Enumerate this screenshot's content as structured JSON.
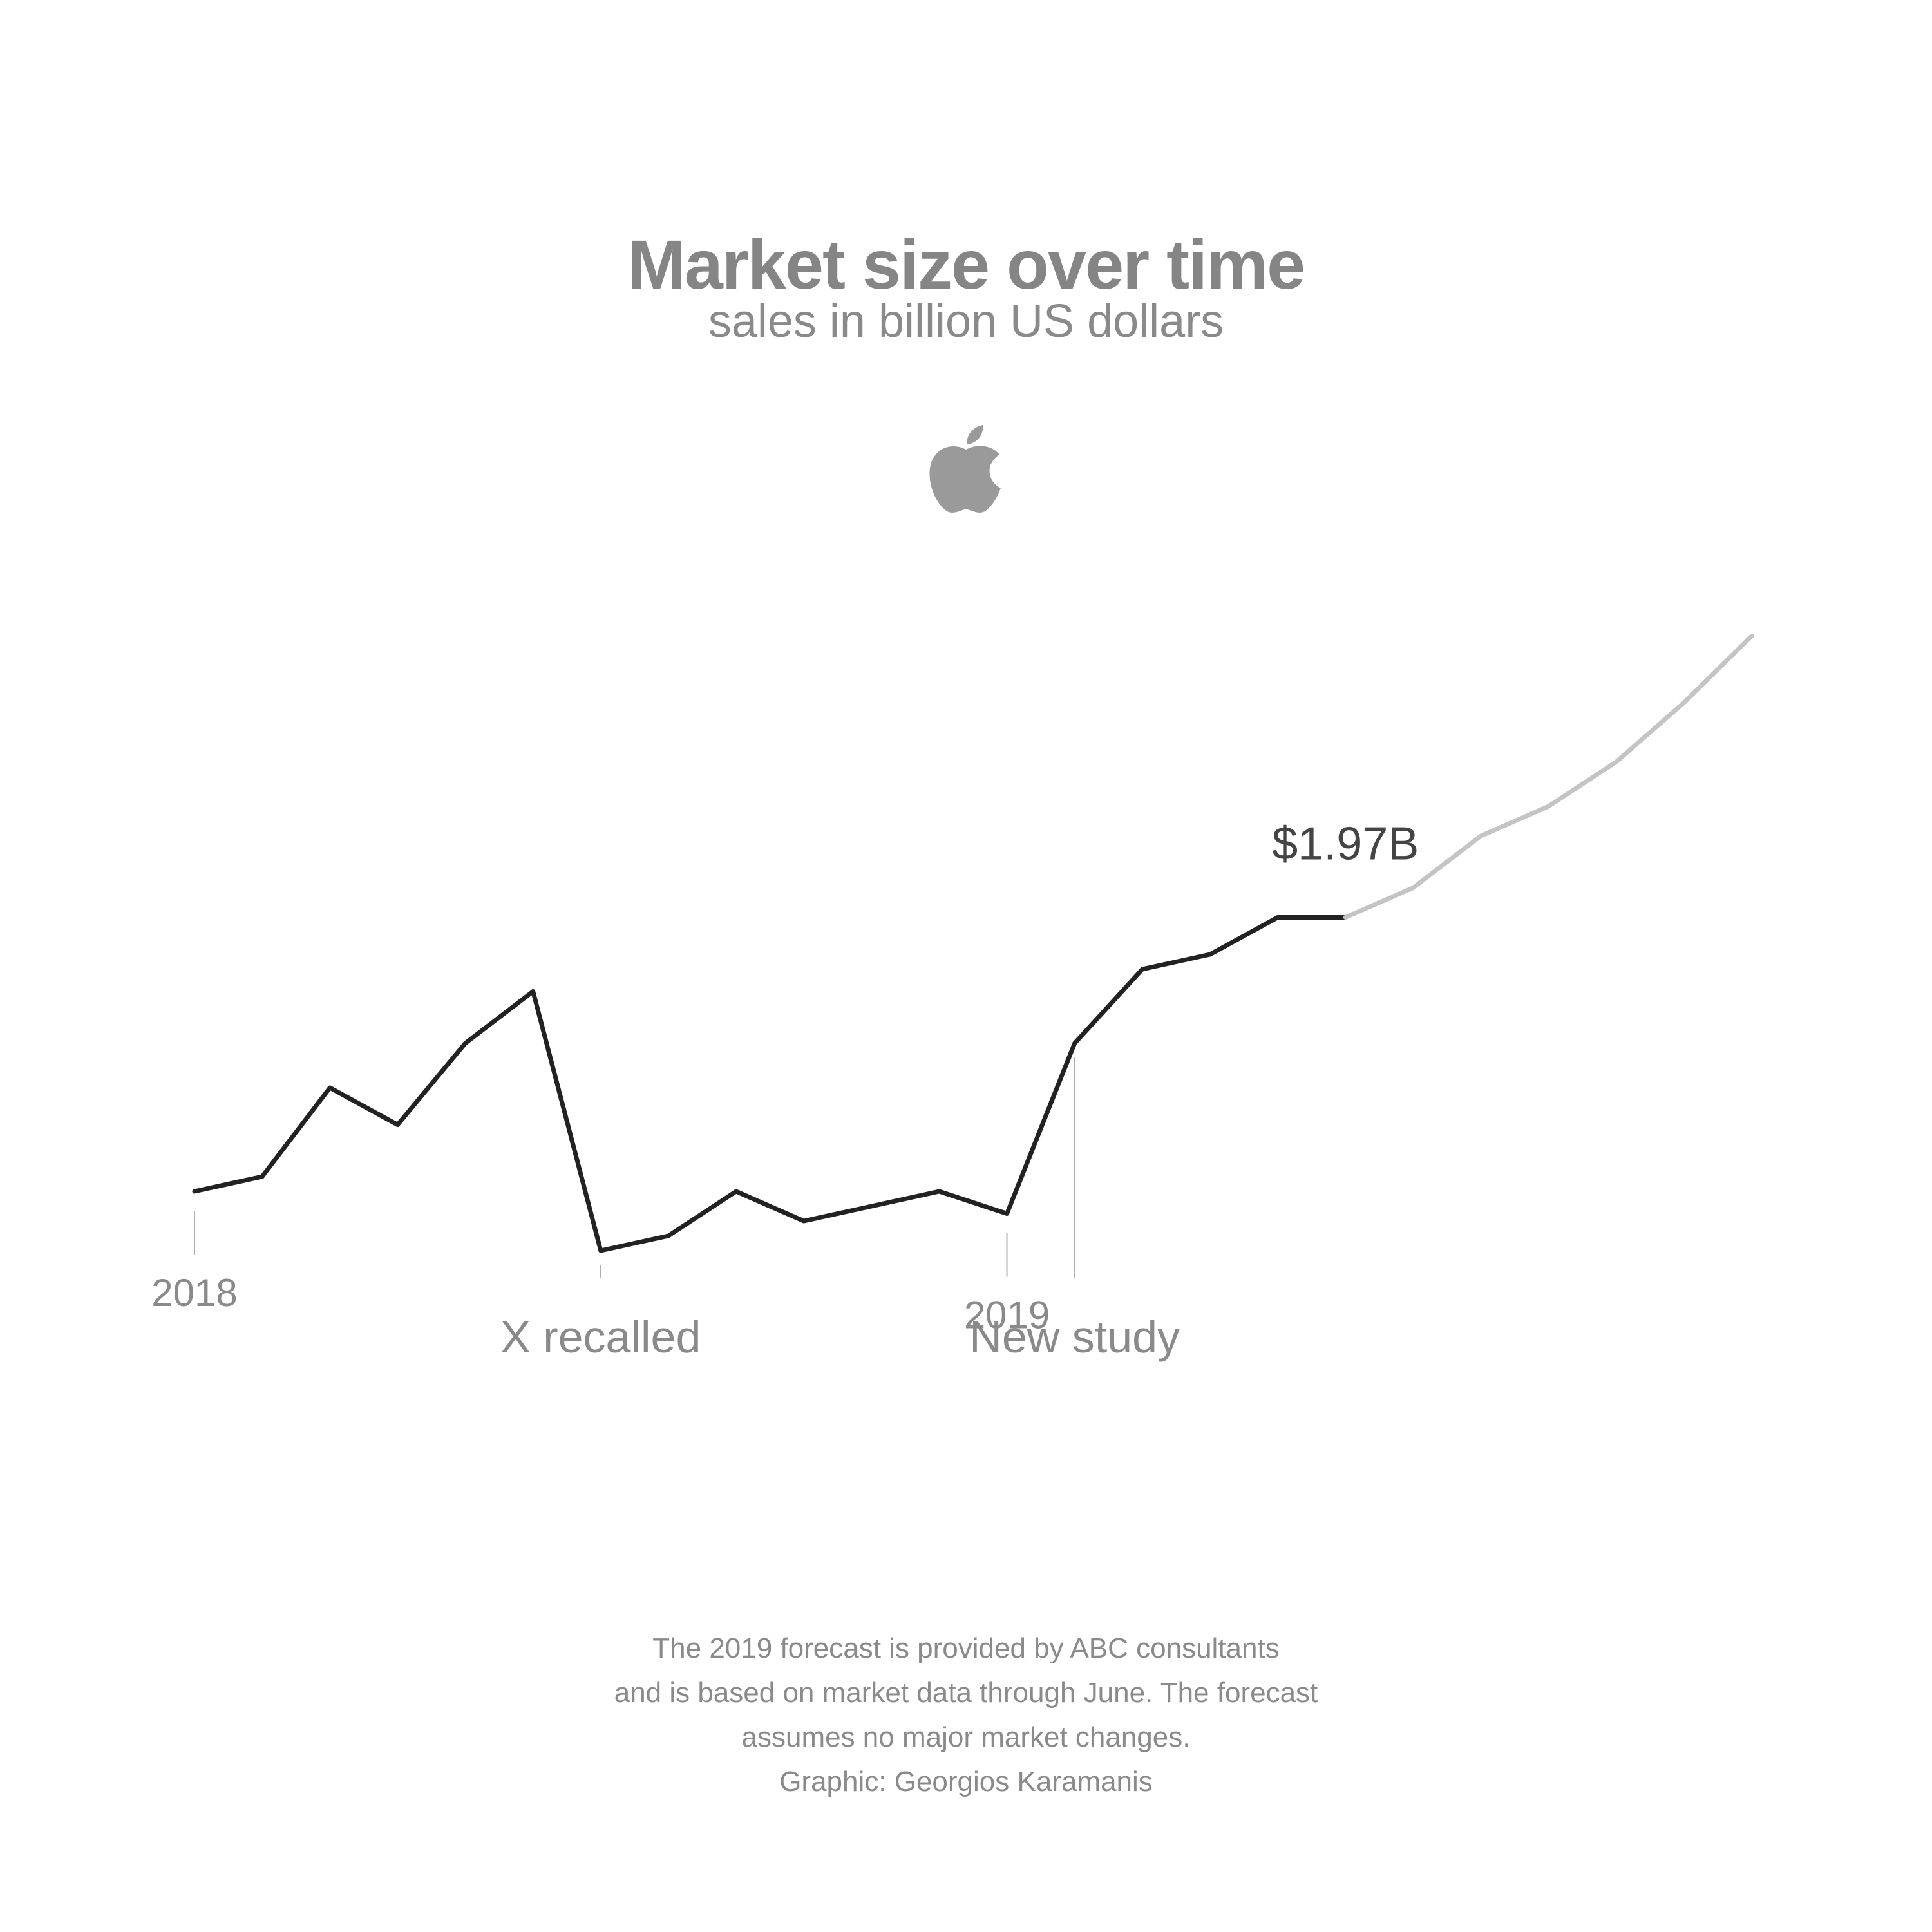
{
  "title": "Market size over time",
  "subtitle": "sales in billion US dollars",
  "logo": {
    "icon": "apple-logo-icon",
    "color": "#9a9a9a"
  },
  "footnote": [
    "The 2019 forecast is provided by ABC consultants",
    "and is based on market data through June. The forecast",
    "assumes no major market changes.",
    "Graphic: Georgios Karamanis"
  ],
  "colors": {
    "actual": "#222222",
    "forecast": "#c4c4c4",
    "text": "#8a8a8a",
    "value_label": "#444444",
    "guide": "#b0b0b0"
  },
  "chart_data": {
    "type": "line",
    "title": "Market size over time",
    "subtitle": "sales in billion US dollars",
    "xlabel": "",
    "ylabel": "",
    "grid": false,
    "x": [
      "2018-01",
      "2018-02",
      "2018-03",
      "2018-04",
      "2018-05",
      "2018-06",
      "2018-07",
      "2018-08",
      "2018-09",
      "2018-10",
      "2018-11",
      "2018-12",
      "2019-01",
      "2019-02",
      "2019-03",
      "2019-04",
      "2019-05",
      "2019-06",
      "2019-07",
      "2019-08",
      "2019-09",
      "2019-10",
      "2019-11",
      "2019-12"
    ],
    "series": [
      {
        "kind": "actual",
        "x": [
          "2018-01",
          "2018-02",
          "2018-03",
          "2018-04",
          "2018-05",
          "2018-06",
          "2018-07",
          "2018-08",
          "2018-09",
          "2018-10",
          "2018-11",
          "2018-12",
          "2019-01",
          "2019-02",
          "2019-03",
          "2019-04",
          "2019-05",
          "2019-06"
        ],
        "values": [
          1.6,
          1.62,
          1.74,
          1.69,
          1.8,
          1.87,
          1.52,
          1.54,
          1.6,
          1.56,
          1.58,
          1.6,
          1.57,
          1.8,
          1.9,
          1.92,
          1.97,
          1.97
        ]
      },
      {
        "kind": "forecast",
        "x": [
          "2019-06",
          "2019-07",
          "2019-08",
          "2019-09",
          "2019-10",
          "2019-11",
          "2019-12"
        ],
        "values": [
          1.97,
          2.01,
          2.08,
          2.12,
          2.18,
          2.26,
          2.35
        ]
      }
    ],
    "value_label": {
      "text": "$1.97B",
      "x": "2019-06"
    },
    "year_ticks": [
      {
        "label": "2018",
        "x": "2018-01"
      },
      {
        "label": "2019",
        "x": "2019-01"
      }
    ],
    "annotations": [
      {
        "label": "X recalled",
        "x": "2018-07"
      },
      {
        "label": "New study",
        "x": "2019-02"
      }
    ],
    "ylim": [
      0.6,
      2.6
    ]
  }
}
